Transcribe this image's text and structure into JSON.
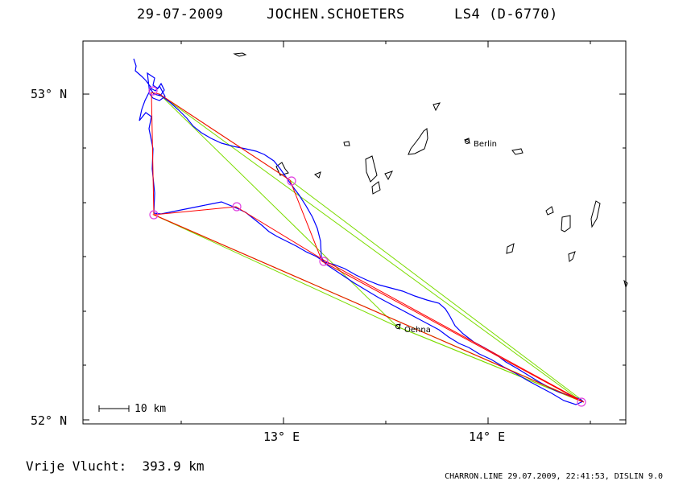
{
  "header": {
    "date": "29-07-2009",
    "pilot": "JOCHEN.SCHOETERS",
    "glider": "LS4 (D-6770)"
  },
  "axes": {
    "lat_labels": [
      "53° N",
      "52° N"
    ],
    "lon_labels": [
      "13° E",
      "14° E"
    ]
  },
  "places": [
    {
      "name": "Berlin",
      "lon": 13.88,
      "lat": 52.85
    },
    {
      "name": "Oehna",
      "lon": 13.56,
      "lat": 52.29
    }
  ],
  "scale": {
    "label": "10 km"
  },
  "distance": "Vrije Vlucht:  393.9 km",
  "footer": "CHARRON.LINE 29.07.2009, 22:41:53, DISLIN 9.0",
  "colors": {
    "track": "#0000ff",
    "task": "#ff0000",
    "fai": "#7cdc00",
    "turnpoint": "#e040e0",
    "lakes": "#000000"
  },
  "chart_data": {
    "type": "map",
    "lon_range": [
      12.0,
      14.65
    ],
    "lat_range": [
      51.99,
      53.16
    ],
    "turnpoints": [
      {
        "lon": 12.34,
        "lat": 53.02
      },
      {
        "lon": 13.03,
        "lat": 52.74
      },
      {
        "lon": 13.19,
        "lat": 52.49
      },
      {
        "lon": 14.45,
        "lat": 52.06
      },
      {
        "lon": 12.35,
        "lat": 52.64
      },
      {
        "lon": 12.75,
        "lat": 52.66
      }
    ],
    "task_route": [
      [
        12.34,
        53.02
      ],
      [
        13.03,
        52.74
      ],
      [
        13.19,
        52.49
      ],
      [
        14.45,
        52.06
      ],
      [
        12.35,
        52.64
      ],
      [
        12.75,
        52.66
      ],
      [
        13.21,
        52.5
      ],
      [
        14.47,
        52.07
      ],
      [
        12.35,
        52.64
      ],
      [
        12.34,
        53.02
      ]
    ],
    "fai_triangles": [
      [
        [
          12.38,
          53.02
        ],
        [
          14.45,
          52.06
        ],
        [
          13.56,
          52.29
        ],
        [
          12.38,
          53.02
        ]
      ],
      [
        [
          12.35,
          52.64
        ],
        [
          14.45,
          52.06
        ],
        [
          13.56,
          52.29
        ],
        [
          12.35,
          52.64
        ]
      ],
      [
        [
          12.38,
          53.02
        ],
        [
          13.05,
          52.74
        ],
        [
          14.45,
          52.07
        ]
      ]
    ]
  }
}
